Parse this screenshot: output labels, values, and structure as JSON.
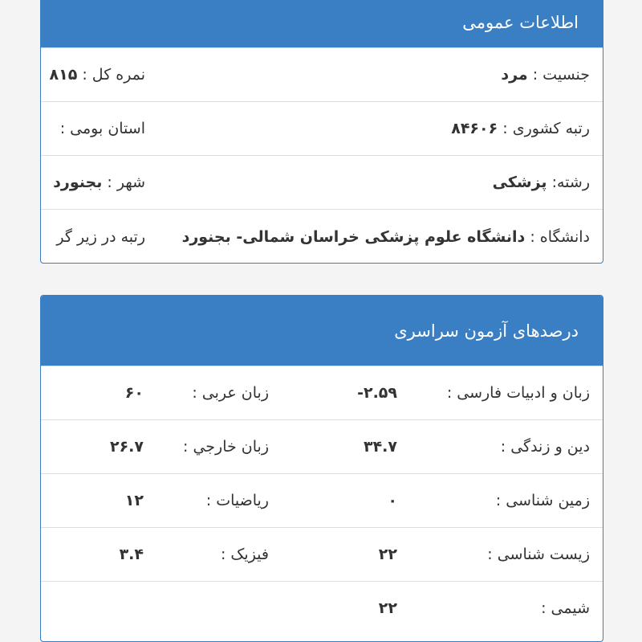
{
  "general_info": {
    "title": "اطلاعات عمومی",
    "rows": [
      {
        "right_label": "جنسیت :",
        "right_value": "مرد",
        "left_label": "نمره کل :",
        "left_value": "۸۱۵"
      },
      {
        "right_label": "رتبه کشوری :",
        "right_value": "۸۴۶۰۶",
        "left_label": "استان بومی :"
      },
      {
        "right_label": "رشته:",
        "right_value": "پزشکی",
        "left_label": "شهر :",
        "left_value": "بجنورد"
      },
      {
        "right_label": "دانشگاه :",
        "right_value": "دانشگاه علوم پزشکی خراسان شمالی- بجنورد",
        "left_label": "رتبه در زیر گر"
      }
    ]
  },
  "exam_percentages": {
    "title": "درصدهای آزمون سراسری",
    "rows": [
      {
        "right_label": "زبان و ادبیات فارسی :",
        "right_value": "-۲.۵۹",
        "left_label": "زبان عربی :",
        "left_value": "۶۰"
      },
      {
        "right_label": "دین و زندگی :",
        "right_value": "۳۴.۷",
        "left_label": "زبان خارجي :",
        "left_value": "۲۶.۷"
      },
      {
        "right_label": "زمین شناسی :",
        "right_value": "۰",
        "left_label": "ریاضیات :",
        "left_value": "۱۲"
      },
      {
        "right_label": "زیست شناسی :",
        "right_value": "۲۲",
        "left_label": "فیزیک :",
        "left_value": "۳.۴"
      },
      {
        "right_label": "شیمی :",
        "right_value": "۲۲"
      }
    ]
  }
}
